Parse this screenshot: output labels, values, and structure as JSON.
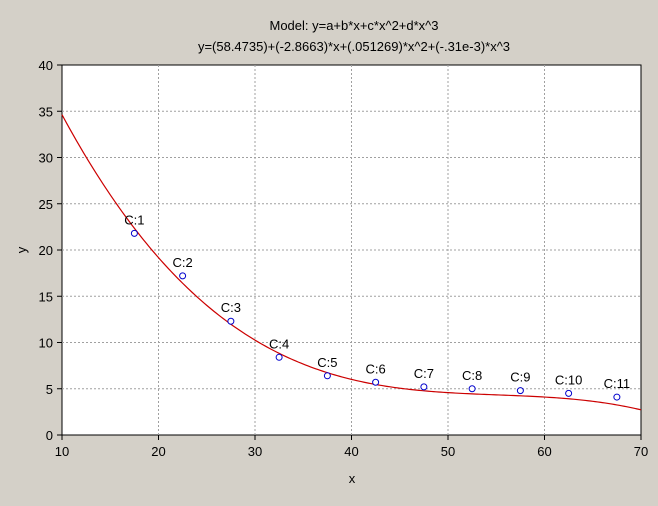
{
  "chart_data": {
    "type": "scatter",
    "title": "Model: y=a+b*x+c*x^2+d*x^3",
    "subtitle": "y=(58.4735)+(-2.8663)*x+(.051269)*x^2+(-.31e-3)*x^3",
    "xlabel": "x",
    "ylabel": "y",
    "xlim": [
      10,
      70
    ],
    "ylim": [
      0,
      40
    ],
    "x_ticks": [
      10,
      20,
      30,
      40,
      50,
      60,
      70
    ],
    "y_ticks": [
      0,
      5,
      10,
      15,
      20,
      25,
      30,
      35,
      40
    ],
    "grid": true,
    "points": [
      {
        "label": "C:1",
        "x": 17.5,
        "y": 21.8
      },
      {
        "label": "C:2",
        "x": 22.5,
        "y": 17.2
      },
      {
        "label": "C:3",
        "x": 27.5,
        "y": 12.3
      },
      {
        "label": "C:4",
        "x": 32.5,
        "y": 8.4
      },
      {
        "label": "C:5",
        "x": 37.5,
        "y": 6.4
      },
      {
        "label": "C:6",
        "x": 42.5,
        "y": 5.7
      },
      {
        "label": "C:7",
        "x": 47.5,
        "y": 5.2
      },
      {
        "label": "C:8",
        "x": 52.5,
        "y": 5.0
      },
      {
        "label": "C:9",
        "x": 57.5,
        "y": 4.8
      },
      {
        "label": "C:10",
        "x": 62.5,
        "y": 4.5
      },
      {
        "label": "C:11",
        "x": 67.5,
        "y": 4.1
      }
    ],
    "fit_coefficients": {
      "a": 58.4735,
      "b": -2.8663,
      "c": 0.051269,
      "d": -0.00031
    },
    "colors": {
      "background": "#d4d0c8",
      "plot_area": "#ffffff",
      "fit_line": "#cc0000",
      "points": "#0000cc",
      "grid": "#a0a0a0",
      "text": "#000000"
    }
  }
}
